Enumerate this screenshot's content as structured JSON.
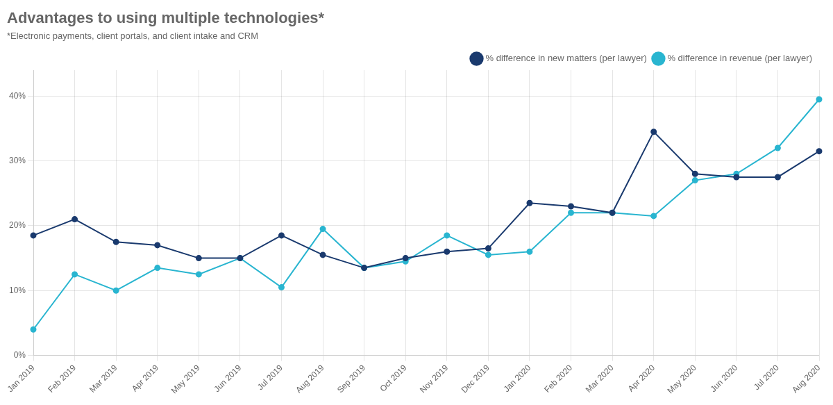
{
  "chart_data": {
    "type": "line",
    "title": "Advantages to using multiple technologies*",
    "subtitle": "*Electronic payments, client portals, and client intake and CRM",
    "categories": [
      "Jan 2019",
      "Feb 2019",
      "Mar 2019",
      "Apr 2019",
      "May 2019",
      "Jun 2019",
      "Jul 2019",
      "Aug 2019",
      "Sep 2019",
      "Oct 2019",
      "Nov 2019",
      "Dec 2019",
      "Jan 2020",
      "Feb 2020",
      "Mar 2020",
      "Apr 2020",
      "May 2020",
      "Jun 2020",
      "Jul 2020",
      "Aug 2020"
    ],
    "series": [
      {
        "name": "% difference in new matters (per lawyer)",
        "color": "#1a3a6e",
        "values": [
          18.5,
          21.0,
          17.5,
          17.0,
          15.0,
          15.0,
          18.5,
          15.5,
          13.5,
          15.0,
          16.0,
          16.5,
          23.5,
          23.0,
          22.0,
          34.5,
          28.0,
          27.5,
          27.5,
          31.5
        ]
      },
      {
        "name": "% difference in revenue (per lawyer)",
        "color": "#29b5d0",
        "values": [
          4.0,
          12.5,
          10.0,
          13.5,
          12.5,
          15.0,
          10.5,
          19.5,
          13.5,
          14.5,
          18.5,
          15.5,
          16.0,
          22.0,
          22.0,
          21.5,
          27.0,
          28.0,
          32.0,
          39.5
        ]
      }
    ],
    "ylim": [
      0,
      44
    ],
    "yticks": [
      {
        "value": 0,
        "label": "0%"
      },
      {
        "value": 10,
        "label": "10%"
      },
      {
        "value": 20,
        "label": "20%"
      },
      {
        "value": 30,
        "label": "30%"
      },
      {
        "value": 40,
        "label": "40%"
      }
    ],
    "grid": true,
    "legend": "top-right",
    "marker": "circle"
  }
}
